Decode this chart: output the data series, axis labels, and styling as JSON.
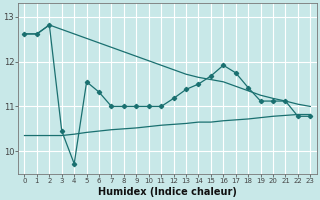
{
  "xlabel": "Humidex (Indice chaleur)",
  "background_color": "#c8e8e8",
  "grid_color": "#ffffff",
  "line_color": "#1a7070",
  "x_values": [
    0,
    1,
    2,
    3,
    4,
    5,
    6,
    7,
    8,
    9,
    10,
    11,
    12,
    13,
    14,
    15,
    16,
    17,
    18,
    19,
    20,
    21,
    22,
    23
  ],
  "y_smooth_top": [
    12.62,
    12.62,
    12.82,
    12.72,
    12.62,
    12.52,
    12.42,
    12.32,
    12.22,
    12.12,
    12.02,
    11.92,
    11.82,
    11.72,
    11.65,
    11.6,
    11.55,
    11.45,
    11.35,
    11.25,
    11.18,
    11.12,
    11.05,
    11.0
  ],
  "y_zigzag": [
    12.62,
    12.62,
    12.82,
    10.45,
    9.72,
    11.55,
    11.32,
    11.0,
    11.0,
    11.0,
    11.0,
    11.0,
    11.18,
    11.38,
    11.5,
    11.68,
    11.92,
    11.75,
    11.42,
    11.12,
    11.12,
    11.12,
    10.78,
    10.78
  ],
  "y_bottom": [
    10.35,
    10.35,
    10.35,
    10.35,
    10.38,
    10.42,
    10.45,
    10.48,
    10.5,
    10.52,
    10.55,
    10.58,
    10.6,
    10.62,
    10.65,
    10.65,
    10.68,
    10.7,
    10.72,
    10.75,
    10.78,
    10.8,
    10.82,
    10.82
  ],
  "ylim": [
    9.5,
    13.3
  ],
  "yticks": [
    10,
    11,
    12,
    13
  ],
  "xticks": [
    0,
    1,
    2,
    3,
    4,
    5,
    6,
    7,
    8,
    9,
    10,
    11,
    12,
    13,
    14,
    15,
    16,
    17,
    18,
    19,
    20,
    21,
    22,
    23
  ]
}
